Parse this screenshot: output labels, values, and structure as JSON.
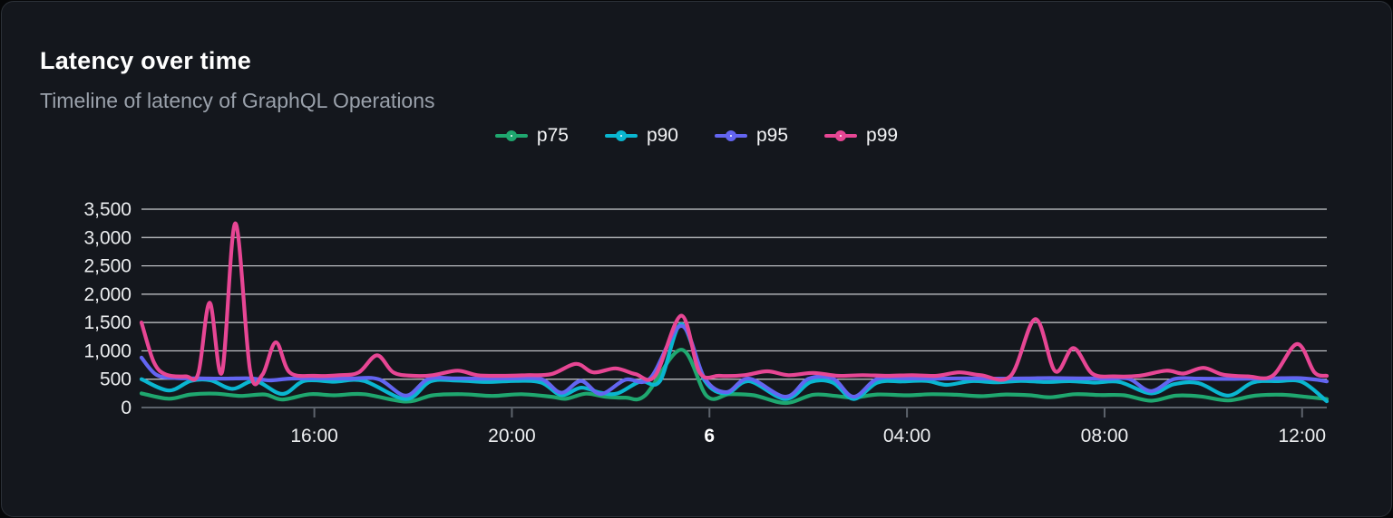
{
  "panel": {
    "title": "Latency over time",
    "subtitle": "Timeline of latency of GraphQL Operations"
  },
  "colors": {
    "panel_bg": "#14171d",
    "panel_border": "#2c3138",
    "title_text": "#ffffff",
    "subtitle_text": "#9aa1ab",
    "axis_label_text": "#eceef0",
    "gridline": "#dcdee2",
    "axis_line": "#5d636c",
    "p75": "#1fa76f",
    "p90": "#0ab6d0",
    "p95": "#6365f1",
    "p99": "#e74694"
  },
  "chart_data": {
    "type": "line",
    "title": "Latency over time",
    "subtitle": "Timeline of latency of GraphQL Operations",
    "xlabel": "",
    "ylabel": "",
    "grid": "horizontal",
    "legend_position": "top-center",
    "x_unit_hours_from_start": "start = 12:30 previous day, span = 24h",
    "y_axis": {
      "min": 0,
      "max": 3500,
      "step": 500,
      "tick_labels": [
        "0",
        "500",
        "1,000",
        "1,500",
        "2,000",
        "2,500",
        "3,000",
        "3,500"
      ]
    },
    "x_axis_ticks": [
      {
        "label": "16:00",
        "h": 3.5,
        "bold": false
      },
      {
        "label": "20:00",
        "h": 7.5,
        "bold": false
      },
      {
        "label": "6",
        "h": 11.5,
        "bold": true
      },
      {
        "label": "04:00",
        "h": 15.5,
        "bold": false
      },
      {
        "label": "08:00",
        "h": 19.5,
        "bold": false
      },
      {
        "label": "12:00",
        "h": 23.5,
        "bold": false
      }
    ],
    "series": [
      {
        "name": "p75",
        "color": "#1fa76f",
        "points": [
          [
            0,
            250
          ],
          [
            0.55,
            155
          ],
          [
            1.0,
            230
          ],
          [
            1.5,
            245
          ],
          [
            2.0,
            205
          ],
          [
            2.5,
            230
          ],
          [
            2.85,
            140
          ],
          [
            3.4,
            235
          ],
          [
            3.9,
            215
          ],
          [
            4.5,
            235
          ],
          [
            5.35,
            105
          ],
          [
            5.9,
            215
          ],
          [
            6.5,
            235
          ],
          [
            7.1,
            205
          ],
          [
            7.7,
            235
          ],
          [
            8.3,
            190
          ],
          [
            8.6,
            155
          ],
          [
            9.0,
            245
          ],
          [
            9.4,
            190
          ],
          [
            9.8,
            175
          ],
          [
            10.2,
            215
          ],
          [
            10.93,
            1020
          ],
          [
            11.45,
            200
          ],
          [
            11.9,
            235
          ],
          [
            12.4,
            215
          ],
          [
            13.04,
            80
          ],
          [
            13.6,
            225
          ],
          [
            14.05,
            205
          ],
          [
            14.42,
            175
          ],
          [
            14.9,
            230
          ],
          [
            15.5,
            215
          ],
          [
            16.0,
            235
          ],
          [
            16.5,
            225
          ],
          [
            17.0,
            200
          ],
          [
            17.5,
            230
          ],
          [
            18.0,
            215
          ],
          [
            18.4,
            180
          ],
          [
            18.9,
            235
          ],
          [
            19.4,
            220
          ],
          [
            19.9,
            215
          ],
          [
            20.44,
            120
          ],
          [
            20.95,
            210
          ],
          [
            21.45,
            195
          ],
          [
            22.0,
            125
          ],
          [
            22.55,
            210
          ],
          [
            23.1,
            225
          ],
          [
            23.6,
            185
          ],
          [
            24,
            150
          ]
        ]
      },
      {
        "name": "p90",
        "color": "#0ab6d0",
        "points": [
          [
            0,
            500
          ],
          [
            0.55,
            300
          ],
          [
            1.0,
            470
          ],
          [
            1.4,
            480
          ],
          [
            1.84,
            330
          ],
          [
            2.3,
            470
          ],
          [
            2.85,
            240
          ],
          [
            3.3,
            470
          ],
          [
            3.9,
            455
          ],
          [
            4.5,
            470
          ],
          [
            5.35,
            150
          ],
          [
            5.85,
            460
          ],
          [
            6.4,
            475
          ],
          [
            7.0,
            450
          ],
          [
            7.6,
            470
          ],
          [
            8.1,
            440
          ],
          [
            8.5,
            220
          ],
          [
            8.9,
            350
          ],
          [
            9.3,
            260
          ],
          [
            9.64,
            250
          ],
          [
            10.1,
            460
          ],
          [
            10.5,
            470
          ],
          [
            10.93,
            1470
          ],
          [
            11.4,
            480
          ],
          [
            11.84,
            250
          ],
          [
            12.3,
            465
          ],
          [
            13.04,
            150
          ],
          [
            13.55,
            450
          ],
          [
            14.0,
            440
          ],
          [
            14.42,
            150
          ],
          [
            14.9,
            440
          ],
          [
            15.4,
            460
          ],
          [
            15.9,
            470
          ],
          [
            16.3,
            400
          ],
          [
            16.8,
            465
          ],
          [
            17.3,
            445
          ],
          [
            17.8,
            470
          ],
          [
            18.3,
            450
          ],
          [
            18.8,
            465
          ],
          [
            19.3,
            440
          ],
          [
            19.8,
            450
          ],
          [
            20.44,
            250
          ],
          [
            20.9,
            410
          ],
          [
            21.4,
            430
          ],
          [
            22.0,
            210
          ],
          [
            22.5,
            440
          ],
          [
            23.0,
            465
          ],
          [
            23.5,
            450
          ],
          [
            24,
            110
          ]
        ]
      },
      {
        "name": "p95",
        "color": "#6365f1",
        "points": [
          [
            0,
            880
          ],
          [
            0.3,
            580
          ],
          [
            0.7,
            520
          ],
          [
            1.2,
            515
          ],
          [
            1.7,
            510
          ],
          [
            2.2,
            515
          ],
          [
            2.6,
            480
          ],
          [
            3.0,
            510
          ],
          [
            3.6,
            515
          ],
          [
            4.2,
            510
          ],
          [
            4.8,
            500
          ],
          [
            5.35,
            210
          ],
          [
            5.8,
            500
          ],
          [
            6.3,
            515
          ],
          [
            6.9,
            510
          ],
          [
            7.5,
            515
          ],
          [
            8.1,
            500
          ],
          [
            8.5,
            260
          ],
          [
            8.9,
            470
          ],
          [
            9.3,
            240
          ],
          [
            9.8,
            490
          ],
          [
            10.3,
            515
          ],
          [
            10.93,
            1440
          ],
          [
            11.4,
            520
          ],
          [
            11.84,
            270
          ],
          [
            12.3,
            510
          ],
          [
            13.04,
            190
          ],
          [
            13.5,
            505
          ],
          [
            14.0,
            510
          ],
          [
            14.42,
            190
          ],
          [
            14.9,
            505
          ],
          [
            15.5,
            515
          ],
          [
            16.1,
            510
          ],
          [
            16.7,
            515
          ],
          [
            17.3,
            510
          ],
          [
            17.9,
            515
          ],
          [
            18.4,
            520
          ],
          [
            19.0,
            515
          ],
          [
            19.6,
            510
          ],
          [
            20.0,
            505
          ],
          [
            20.44,
            290
          ],
          [
            20.9,
            500
          ],
          [
            21.4,
            510
          ],
          [
            21.9,
            505
          ],
          [
            22.4,
            510
          ],
          [
            22.9,
            515
          ],
          [
            23.4,
            520
          ],
          [
            23.8,
            490
          ],
          [
            24,
            460
          ]
        ]
      },
      {
        "name": "p99",
        "color": "#e74694",
        "points": [
          [
            0,
            1500
          ],
          [
            0.25,
            800
          ],
          [
            0.5,
            580
          ],
          [
            0.9,
            550
          ],
          [
            1.15,
            600
          ],
          [
            1.38,
            1850
          ],
          [
            1.63,
            620
          ],
          [
            1.9,
            3250
          ],
          [
            2.2,
            650
          ],
          [
            2.45,
            580
          ],
          [
            2.72,
            1150
          ],
          [
            3.0,
            620
          ],
          [
            3.5,
            560
          ],
          [
            4.0,
            570
          ],
          [
            4.4,
            620
          ],
          [
            4.77,
            920
          ],
          [
            5.1,
            620
          ],
          [
            5.5,
            560
          ],
          [
            5.9,
            570
          ],
          [
            6.4,
            650
          ],
          [
            6.8,
            570
          ],
          [
            7.3,
            560
          ],
          [
            7.8,
            570
          ],
          [
            8.3,
            590
          ],
          [
            8.8,
            770
          ],
          [
            9.15,
            620
          ],
          [
            9.6,
            690
          ],
          [
            10.0,
            590
          ],
          [
            10.4,
            560
          ],
          [
            10.93,
            1620
          ],
          [
            11.3,
            620
          ],
          [
            11.7,
            560
          ],
          [
            12.2,
            570
          ],
          [
            12.67,
            640
          ],
          [
            13.1,
            570
          ],
          [
            13.6,
            610
          ],
          [
            14.1,
            560
          ],
          [
            14.6,
            570
          ],
          [
            15.1,
            560
          ],
          [
            15.6,
            570
          ],
          [
            16.1,
            560
          ],
          [
            16.56,
            620
          ],
          [
            17.0,
            570
          ],
          [
            17.6,
            560
          ],
          [
            18.1,
            1560
          ],
          [
            18.5,
            640
          ],
          [
            18.87,
            1050
          ],
          [
            19.25,
            600
          ],
          [
            19.7,
            550
          ],
          [
            20.2,
            560
          ],
          [
            20.75,
            650
          ],
          [
            21.1,
            600
          ],
          [
            21.5,
            700
          ],
          [
            21.9,
            580
          ],
          [
            22.4,
            550
          ],
          [
            22.9,
            560
          ],
          [
            23.4,
            1120
          ],
          [
            23.75,
            620
          ],
          [
            24,
            560
          ]
        ]
      }
    ]
  }
}
